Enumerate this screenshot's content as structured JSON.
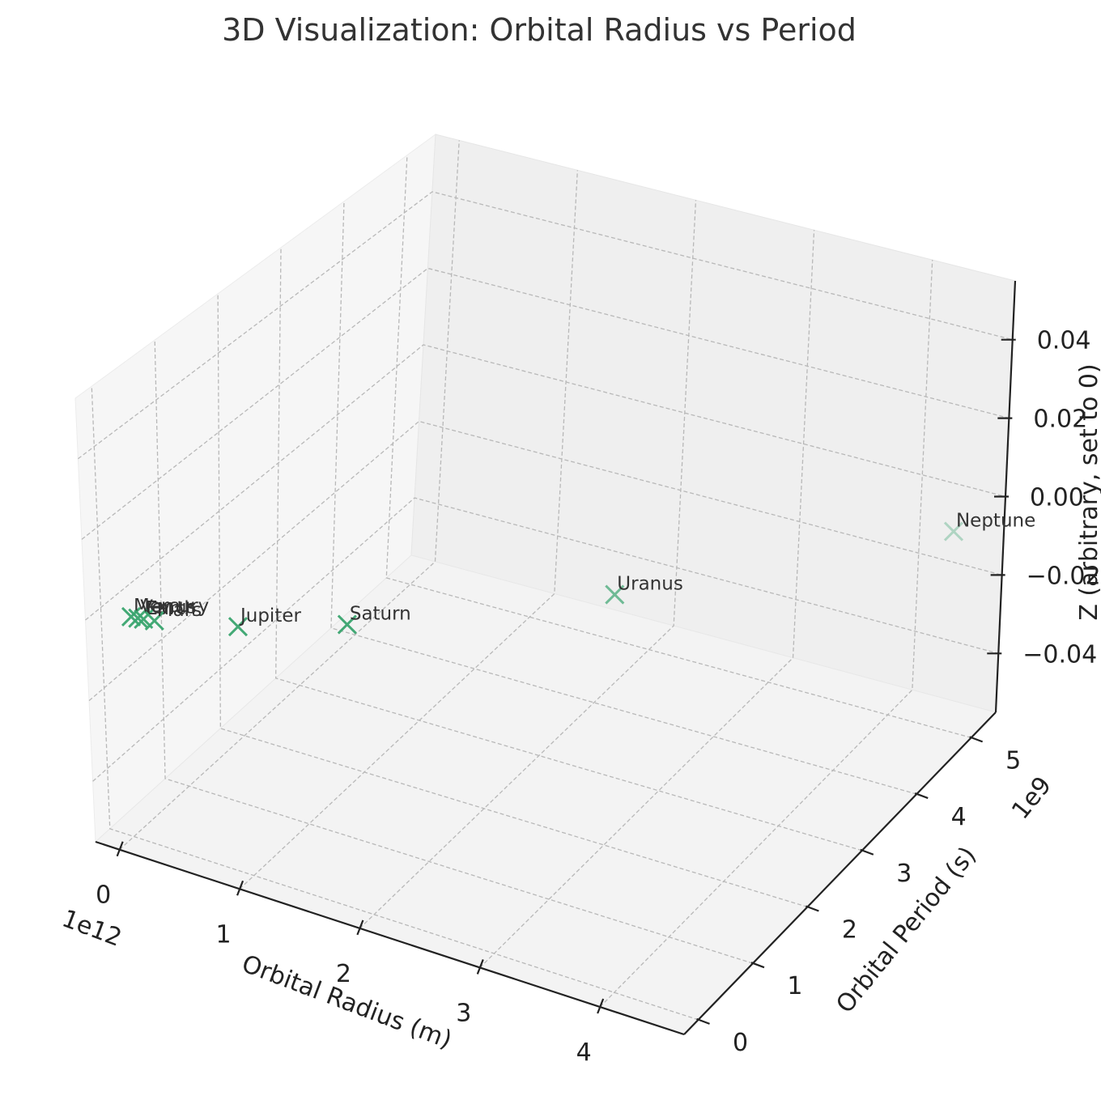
{
  "chart_data": {
    "type": "scatter",
    "title": "3D Visualization: Orbital Radius vs Period",
    "xlabel": "Orbital Radius (m)",
    "ylabel": "Orbital Period (s)",
    "zlabel": "Z (arbitrary, set to 0)",
    "x_offset_label": "1e12",
    "y_offset_label": "1e9",
    "xlim": [
      -200000000000.0,
      4700000000000.0
    ],
    "ylim": [
      -260000000.0,
      5450000000.0
    ],
    "zlim": [
      -0.055,
      0.055
    ],
    "x_ticks": [
      {
        "value": 0,
        "label": "0"
      },
      {
        "value": 1000000000000.0,
        "label": "1"
      },
      {
        "value": 2000000000000.0,
        "label": "2"
      },
      {
        "value": 3000000000000.0,
        "label": "3"
      },
      {
        "value": 4000000000000.0,
        "label": "4"
      }
    ],
    "y_ticks": [
      {
        "value": 0,
        "label": "0"
      },
      {
        "value": 1000000000.0,
        "label": "1"
      },
      {
        "value": 2000000000.0,
        "label": "2"
      },
      {
        "value": 3000000000.0,
        "label": "3"
      },
      {
        "value": 4000000000.0,
        "label": "4"
      },
      {
        "value": 5000000000.0,
        "label": "5"
      }
    ],
    "z_ticks": [
      {
        "value": -0.04,
        "label": "−0.04"
      },
      {
        "value": -0.02,
        "label": "−0.02"
      },
      {
        "value": 0.0,
        "label": "0.00"
      },
      {
        "value": 0.02,
        "label": "0.02"
      },
      {
        "value": 0.04,
        "label": "0.04"
      }
    ],
    "grid": true,
    "marker": "x",
    "marker_color": "#3aa56f",
    "points": [
      {
        "label": "Mercury",
        "x": 57900000000.0,
        "y": 7600000.0,
        "z": 0
      },
      {
        "label": "Venus",
        "x": 108200000000.0,
        "y": 19400000.0,
        "z": 0
      },
      {
        "label": "Earth",
        "x": 149600000000.0,
        "y": 31600000.0,
        "z": 0
      },
      {
        "label": "Mars",
        "x": 227900000000.0,
        "y": 59400000.0,
        "z": 0
      },
      {
        "label": "Jupiter",
        "x": 778500000000.0,
        "y": 374000000.0,
        "z": 0
      },
      {
        "label": "Saturn",
        "x": 1432000000000.0,
        "y": 929000000.0,
        "z": 0
      },
      {
        "label": "Uranus",
        "x": 2867000000000.0,
        "y": 2650000000.0,
        "z": 0
      },
      {
        "label": "Neptune",
        "x": 4515000000000.0,
        "y": 5200000000.0,
        "z": 0
      }
    ]
  }
}
